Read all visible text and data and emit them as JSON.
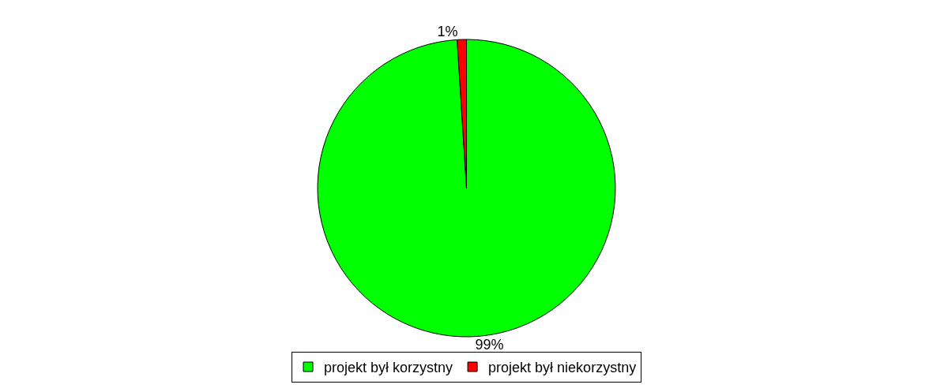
{
  "chart_data": {
    "type": "pie",
    "categories": [
      "projekt był korzystny",
      "projekt był niekorzystny"
    ],
    "values": [
      99,
      1
    ],
    "colors": [
      "#00ff00",
      "#ff0000"
    ],
    "value_labels": [
      "99%",
      "1%"
    ],
    "legend": "bottom"
  }
}
